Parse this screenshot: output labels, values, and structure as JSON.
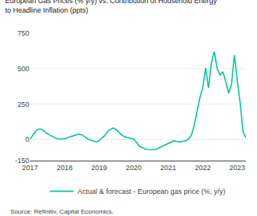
{
  "chart_data": {
    "type": "line",
    "title": "European Gas Prices (% y/y) vs. Contribution of Household Energy",
    "subtitle": "to Headline Inflation (ppts)",
    "annotations": [
      "Source: Refinitiv, Capital Economics."
    ],
    "x": [
      2017.0,
      2017.083,
      2017.167,
      2017.25,
      2017.333,
      2017.417,
      2017.5,
      2017.583,
      2017.667,
      2017.75,
      2017.833,
      2017.917,
      2018.0,
      2018.083,
      2018.167,
      2018.25,
      2018.333,
      2018.417,
      2018.5,
      2018.583,
      2018.667,
      2018.75,
      2018.833,
      2018.917,
      2019.0,
      2019.083,
      2019.167,
      2019.25,
      2019.333,
      2019.417,
      2019.5,
      2019.583,
      2019.667,
      2019.75,
      2019.833,
      2019.917,
      2020.0,
      2020.083,
      2020.167,
      2020.25,
      2020.333,
      2020.417,
      2020.5,
      2020.583,
      2020.667,
      2020.75,
      2020.833,
      2020.917,
      2021.0,
      2021.083,
      2021.167,
      2021.25,
      2021.333,
      2021.417,
      2021.5,
      2021.583,
      2021.667,
      2021.75,
      2021.833,
      2021.917,
      2022.0,
      2022.083,
      2022.167,
      2022.25,
      2022.333,
      2022.417,
      2022.5,
      2022.583,
      2022.667,
      2022.75,
      2022.833,
      2022.917,
      2023.0,
      2023.083,
      2023.167,
      2023.25
    ],
    "series": [
      {
        "name": "Actual & forecast - European gas price (%, y/y)",
        "color": "#00c9a0",
        "values": [
          2,
          30,
          60,
          72,
          72,
          58,
          40,
          28,
          18,
          8,
          4,
          2,
          4,
          12,
          18,
          28,
          32,
          38,
          32,
          18,
          4,
          -5,
          -12,
          -18,
          -8,
          8,
          28,
          58,
          72,
          80,
          68,
          48,
          28,
          18,
          12,
          8,
          2,
          -22,
          -48,
          -58,
          -68,
          -72,
          -72,
          -73,
          -68,
          -58,
          -48,
          -42,
          -28,
          -18,
          -10,
          -14,
          -18,
          -14,
          -10,
          2,
          28,
          95,
          195,
          295,
          365,
          505,
          365,
          540,
          620,
          500,
          455,
          478,
          408,
          325,
          390,
          595,
          415,
          258,
          52,
          12
        ]
      }
    ],
    "xlim": [
      2017.0,
      2023.25
    ],
    "xticks": [
      2017,
      2018,
      2019,
      2020,
      2021,
      2022,
      2023
    ],
    "ylim": [
      -150,
      750
    ],
    "yticks": [
      -150,
      0,
      250,
      500,
      750
    ],
    "grid": "y",
    "legend": "bottom"
  }
}
